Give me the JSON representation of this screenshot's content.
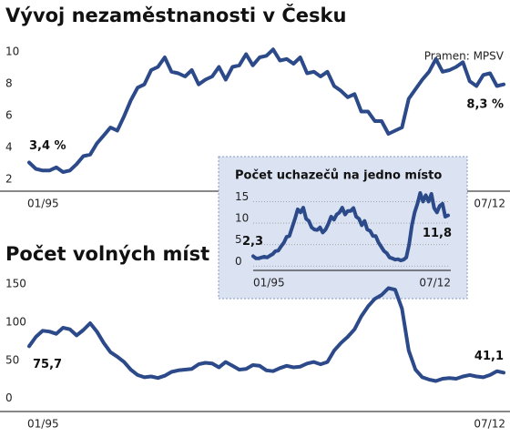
{
  "chart_data": [
    {
      "type": "line",
      "title": "Vývoj nezaměstnanosti v Česku",
      "source": "Pramen: MPSV",
      "categories": [
        "01/95",
        null,
        null,
        null,
        null,
        null,
        null,
        null,
        null,
        null,
        null,
        null,
        null,
        null,
        null,
        null,
        null,
        null,
        null,
        null,
        null,
        null,
        null,
        null,
        null,
        null,
        null,
        null,
        null,
        null,
        null,
        null,
        null,
        null,
        null,
        null,
        null,
        null,
        null,
        null,
        null,
        null,
        null,
        null,
        null,
        null,
        null,
        null,
        null,
        null,
        null,
        null,
        null,
        null,
        null,
        null,
        null,
        null,
        null,
        null,
        null,
        null,
        null,
        null,
        null,
        null,
        null,
        null,
        null,
        null,
        "07/12"
      ],
      "series": [
        {
          "color": "#2c4a8a",
          "values": [
            3.4,
            3.0,
            2.9,
            2.9,
            3.1,
            2.8,
            2.9,
            3.3,
            3.8,
            3.9,
            4.6,
            5.1,
            5.6,
            5.4,
            6.3,
            7.3,
            8.1,
            8.3,
            9.2,
            9.4,
            10.0,
            9.1,
            9.0,
            8.8,
            9.2,
            8.3,
            8.6,
            8.8,
            9.4,
            8.6,
            9.4,
            9.5,
            10.2,
            9.5,
            10.0,
            10.1,
            10.5,
            9.8,
            9.9,
            9.6,
            10.0,
            9.0,
            9.1,
            8.8,
            9.1,
            8.2,
            7.9,
            7.5,
            7.7,
            6.6,
            6.6,
            6.0,
            6.0,
            5.2,
            5.4,
            5.6,
            7.4,
            8.0,
            8.6,
            9.1,
            9.9,
            9.1,
            9.2,
            9.4,
            9.7,
            8.5,
            8.2,
            8.9,
            9.0,
            8.2,
            8.3
          ],
          "value_labels": [
            "3,4 %",
            null,
            null,
            null,
            null,
            null,
            null,
            null,
            null,
            null,
            null,
            null,
            null,
            null,
            null,
            null,
            null,
            null,
            null,
            null,
            null,
            null,
            null,
            null,
            null,
            null,
            null,
            null,
            null,
            null,
            null,
            null,
            null,
            null,
            null,
            null,
            null,
            null,
            null,
            null,
            null,
            null,
            null,
            null,
            null,
            null,
            null,
            null,
            null,
            null,
            null,
            null,
            null,
            null,
            null,
            null,
            null,
            null,
            null,
            null,
            null,
            null,
            null,
            null,
            null,
            null,
            null,
            null,
            null,
            null,
            "8,3 %"
          ]
        }
      ],
      "ylim": [
        1.6,
        10.4
      ],
      "yticks": [
        2,
        4,
        6,
        8,
        10
      ],
      "grid": false
    },
    {
      "type": "line",
      "title": "Počet uchazečů na jedno místo",
      "categories": [
        "01/95",
        null,
        null,
        null,
        null,
        null,
        null,
        null,
        null,
        null,
        null,
        null,
        null,
        null,
        null,
        null,
        null,
        null,
        null,
        null,
        null,
        null,
        null,
        null,
        null,
        null,
        null,
        null,
        null,
        null,
        null,
        null,
        null,
        null,
        null,
        null,
        null,
        null,
        null,
        null,
        null,
        null,
        null,
        null,
        null,
        null,
        null,
        null,
        null,
        null,
        null,
        null,
        null,
        null,
        null,
        null,
        null,
        null,
        null,
        null,
        null,
        null,
        null,
        null,
        null,
        null,
        null,
        null,
        null,
        null,
        "07/12"
      ],
      "series": [
        {
          "color": "#2c4a8a",
          "values": [
            2.3,
            1.8,
            1.8,
            2.0,
            2.2,
            2.0,
            2.4,
            2.8,
            3.5,
            3.6,
            4.6,
            5.4,
            6.8,
            7.0,
            9.0,
            11.0,
            13.2,
            12.5,
            13.6,
            11.0,
            10.5,
            9.0,
            8.5,
            8.4,
            9.0,
            7.8,
            8.5,
            9.8,
            11.5,
            10.8,
            12.0,
            12.5,
            13.6,
            12.0,
            12.8,
            12.8,
            13.5,
            11.5,
            11.0,
            9.5,
            10.5,
            8.5,
            8.2,
            7.0,
            7.0,
            5.5,
            4.5,
            3.5,
            3.0,
            2.0,
            1.8,
            1.5,
            1.6,
            1.3,
            1.5,
            2.0,
            5.0,
            9.5,
            12.5,
            14.5,
            17.0,
            15.0,
            16.5,
            15.0,
            16.8,
            13.5,
            12.5,
            14.0,
            14.5,
            11.5,
            11.8
          ],
          "value_labels": [
            "2,3",
            null,
            null,
            null,
            null,
            null,
            null,
            null,
            null,
            null,
            null,
            null,
            null,
            null,
            null,
            null,
            null,
            null,
            null,
            null,
            null,
            null,
            null,
            null,
            null,
            null,
            null,
            null,
            null,
            null,
            null,
            null,
            null,
            null,
            null,
            null,
            null,
            null,
            null,
            null,
            null,
            null,
            null,
            null,
            null,
            null,
            null,
            null,
            null,
            null,
            null,
            null,
            null,
            null,
            null,
            null,
            null,
            null,
            null,
            null,
            null,
            null,
            null,
            null,
            null,
            null,
            null,
            null,
            null,
            null,
            "11,8"
          ]
        }
      ],
      "ylim": [
        -1,
        17
      ],
      "yticks": [
        0,
        5,
        10,
        15
      ],
      "grid": true
    },
    {
      "type": "line",
      "title": "Počet volných míst",
      "categories": [
        "01/95",
        null,
        null,
        null,
        null,
        null,
        null,
        null,
        null,
        null,
        null,
        null,
        null,
        null,
        null,
        null,
        null,
        null,
        null,
        null,
        null,
        null,
        null,
        null,
        null,
        null,
        null,
        null,
        null,
        null,
        null,
        null,
        null,
        null,
        null,
        null,
        null,
        null,
        null,
        null,
        null,
        null,
        null,
        null,
        null,
        null,
        null,
        null,
        null,
        null,
        null,
        null,
        null,
        null,
        null,
        null,
        null,
        null,
        null,
        null,
        null,
        null,
        null,
        null,
        null,
        null,
        null,
        null,
        null,
        null,
        "07/12"
      ],
      "series": [
        {
          "color": "#2c4a8a",
          "values": [
            75.7,
            88,
            96,
            95,
            92,
            100,
            98,
            90,
            97,
            106,
            95,
            80,
            68,
            62,
            55,
            45,
            38,
            35,
            36,
            34,
            37,
            42,
            44,
            45,
            46,
            52,
            54,
            53,
            48,
            55,
            50,
            45,
            46,
            51,
            50,
            44,
            43,
            47,
            50,
            48,
            49,
            53,
            55,
            52,
            55,
            70,
            80,
            88,
            98,
            115,
            128,
            138,
            143,
            152,
            150,
            125,
            70,
            45,
            35,
            32,
            30,
            33,
            34,
            33,
            36,
            38,
            36,
            35,
            38,
            43,
            41.1
          ],
          "value_labels": [
            "75,7",
            null,
            null,
            null,
            null,
            null,
            null,
            null,
            null,
            null,
            null,
            null,
            null,
            null,
            null,
            null,
            null,
            null,
            null,
            null,
            null,
            null,
            null,
            null,
            null,
            null,
            null,
            null,
            null,
            null,
            null,
            null,
            null,
            null,
            null,
            null,
            null,
            null,
            null,
            null,
            null,
            null,
            null,
            null,
            null,
            null,
            null,
            null,
            null,
            null,
            null,
            null,
            null,
            null,
            null,
            null,
            null,
            null,
            null,
            null,
            null,
            null,
            null,
            null,
            null,
            null,
            null,
            null,
            null,
            null,
            "41,1"
          ]
        }
      ],
      "ylim": [
        -10,
        155
      ],
      "yticks": [
        0,
        50,
        100,
        150
      ],
      "grid": false
    }
  ]
}
